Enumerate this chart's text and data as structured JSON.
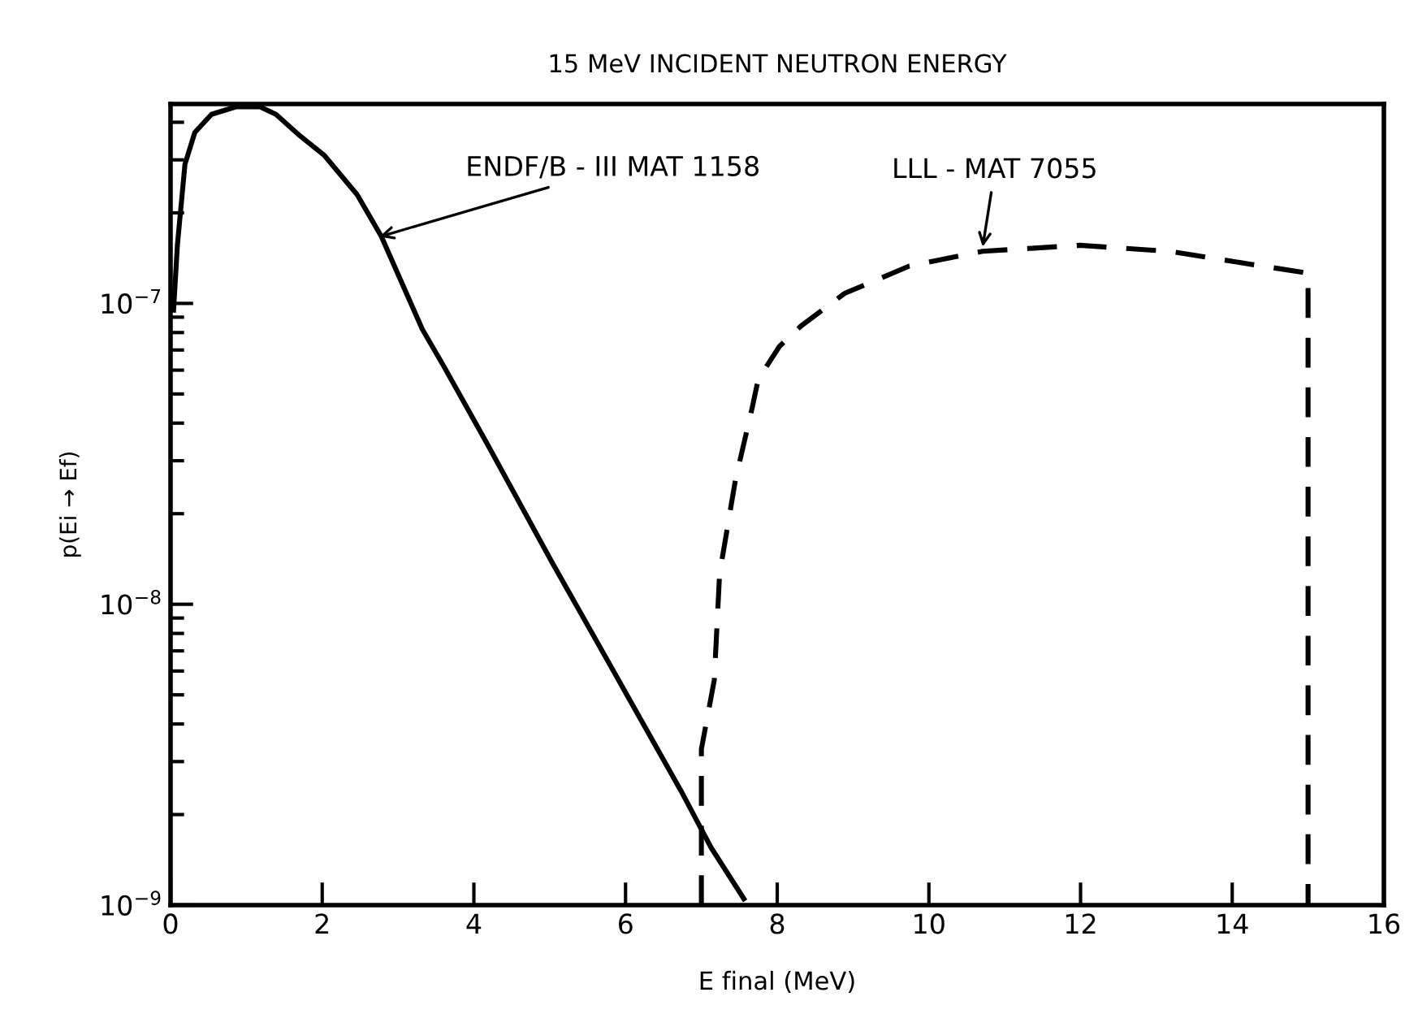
{
  "chart_data": {
    "type": "line",
    "title": "15 MeV INCIDENT NEUTRON ENERGY",
    "xlabel": "E final (MeV)",
    "ylabel": "p(Ei → Ef)",
    "log": "y",
    "xlim": [
      0,
      16
    ],
    "xticks": [
      0,
      2,
      4,
      6,
      8,
      10,
      12,
      14,
      16
    ],
    "ylim": [
      1e-09,
      4.6e-07
    ],
    "yticks": [
      {
        "value": 1e-09,
        "label": "10$^{−9}$"
      },
      {
        "value": 1e-08,
        "label": "10$^{−8}$"
      },
      {
        "value": 1e-07,
        "label": "10$^{−7}$"
      }
    ],
    "grid": false,
    "marker": "none",
    "series": [
      {
        "color": "#000000",
        "line_style": "solid",
        "x": [
          0.04,
          0.09,
          0.19,
          0.32,
          0.54,
          0.86,
          1.18,
          1.39,
          1.71,
          2.03,
          2.46,
          2.78,
          3.32,
          3.6,
          4.18,
          5.03,
          5.89,
          6.75,
          7.13,
          7.56
        ],
        "values": [
          9.5e-08,
          1.56e-07,
          2.9e-07,
          3.7e-07,
          4.25e-07,
          4.5e-07,
          4.5e-07,
          4.25e-07,
          3.6e-07,
          3.1e-07,
          2.3e-07,
          1.67e-07,
          8.2e-08,
          6.2e-08,
          3.4e-08,
          1.38e-08,
          5.7e-09,
          2.35e-09,
          1.55e-09,
          1.05e-09
        ]
      },
      {
        "color": "#000000",
        "line_style": "dashed",
        "x": [
          7.0,
          7.0,
          7.17,
          7.24,
          7.32,
          7.45,
          7.67,
          7.75,
          8.03,
          8.31,
          8.89,
          9.74,
          10.71,
          11.99,
          13.17,
          14.24,
          15.0,
          15.0
        ],
        "values": [
          1e-09,
          3.3e-09,
          5.6e-09,
          1.26e-08,
          1.66e-08,
          2.6e-08,
          4.5e-08,
          5.6e-08,
          7.2e-08,
          8.4e-08,
          1.08e-07,
          1.33e-07,
          1.49e-07,
          1.56e-07,
          1.49e-07,
          1.35e-07,
          1.26e-07,
          1e-09
        ]
      }
    ],
    "annotations": [
      {
        "text": "ENDF/B - III MAT 1158",
        "x": 2.7,
        "y": 1.65e-07
      },
      {
        "text": "LLL - MAT 7055",
        "x": 10.7,
        "y": 1.49e-07
      }
    ]
  }
}
